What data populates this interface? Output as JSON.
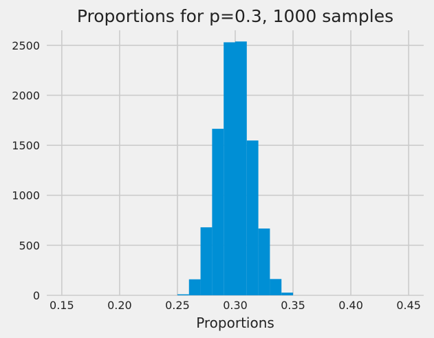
{
  "chart_data": {
    "type": "bar",
    "title": "Proportions for p=0.3, 1000 samples",
    "xlabel": "Proportions",
    "ylabel": "",
    "xlim": [
      0.137,
      0.463
    ],
    "ylim": [
      0,
      2650
    ],
    "x_ticks": [
      0.15,
      0.2,
      0.25,
      0.3,
      0.35,
      0.4,
      0.45
    ],
    "x_tick_labels": [
      "0.15",
      "0.20",
      "0.25",
      "0.30",
      "0.35",
      "0.40",
      "0.45"
    ],
    "y_ticks": [
      0,
      500,
      1000,
      1500,
      2000,
      2500
    ],
    "y_tick_labels": [
      "0",
      "500",
      "1000",
      "1500",
      "2000",
      "2500"
    ],
    "grid": true,
    "bar_color": "#008fd5",
    "bins": [
      {
        "start": 0.25,
        "end": 0.26,
        "value": 10
      },
      {
        "start": 0.26,
        "end": 0.27,
        "value": 160
      },
      {
        "start": 0.27,
        "end": 0.28,
        "value": 680
      },
      {
        "start": 0.28,
        "end": 0.29,
        "value": 1665
      },
      {
        "start": 0.29,
        "end": 0.3,
        "value": 2530
      },
      {
        "start": 0.3,
        "end": 0.31,
        "value": 2538
      },
      {
        "start": 0.31,
        "end": 0.32,
        "value": 1548
      },
      {
        "start": 0.32,
        "end": 0.33,
        "value": 668
      },
      {
        "start": 0.33,
        "end": 0.34,
        "value": 163
      },
      {
        "start": 0.34,
        "end": 0.35,
        "value": 27
      }
    ]
  }
}
